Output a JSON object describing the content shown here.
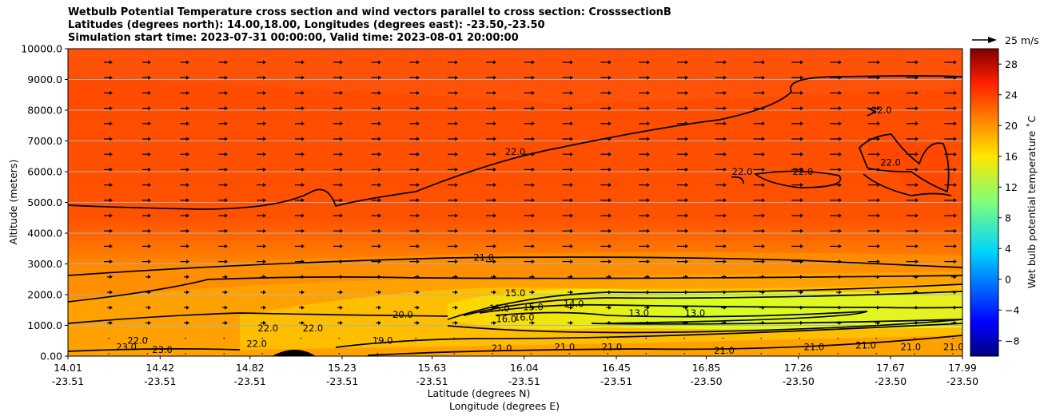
{
  "chart_data": {
    "type": "contour",
    "title_lines": [
      "Wetbulb Potential Temperature cross section and wind vectors parallel to cross section: CrosssectionB",
      "Latitudes (degrees north): 14.00,18.00, Longitudes (degrees east): -23.50,-23.50",
      "Simulation start time: 2023-07-31 00:00:00, Valid time: 2023-08-01 20:00:00"
    ],
    "ylabel": "Altitude (meters)",
    "xlabel_lat": "Latitude (degrees N)",
    "xlabel_lon": "Longitude (degrees E)",
    "y_range": [
      0,
      10000
    ],
    "y_ticks": [
      "0.00",
      "1000.0",
      "2000.0",
      "3000.0",
      "4000.0",
      "5000.0",
      "6000.0",
      "7000.0",
      "8000.0",
      "9000.0",
      "10000.0"
    ],
    "y_tick_values": [
      0,
      1000,
      2000,
      3000,
      4000,
      5000,
      6000,
      7000,
      8000,
      9000,
      10000
    ],
    "x_range": [
      14.01,
      17.99
    ],
    "x_ticks": [
      {
        "lat": "14.01",
        "lon": "-23.51",
        "value": 14.01
      },
      {
        "lat": "14.42",
        "lon": "-23.51",
        "value": 14.42
      },
      {
        "lat": "14.82",
        "lon": "-23.51",
        "value": 14.82
      },
      {
        "lat": "15.23",
        "lon": "-23.51",
        "value": 15.23
      },
      {
        "lat": "15.63",
        "lon": "-23.51",
        "value": 15.63
      },
      {
        "lat": "16.04",
        "lon": "-23.51",
        "value": 16.04
      },
      {
        "lat": "16.45",
        "lon": "-23.51",
        "value": 16.45
      },
      {
        "lat": "16.85",
        "lon": "-23.50",
        "value": 16.85
      },
      {
        "lat": "17.26",
        "lon": "-23.50",
        "value": 17.26
      },
      {
        "lat": "17.67",
        "lon": "-23.50",
        "value": 17.67
      },
      {
        "lat": "17.99",
        "lon": "-23.50",
        "value": 17.99
      }
    ],
    "colorbar_label": "Wet bulb potential temperature $^\\circ$C",
    "colorbar_label_display": "Wet bulb potential temperature ˚C",
    "colorbar_range": [
      -10,
      30
    ],
    "colorbar_ticks": [
      "28",
      "24",
      "20",
      "16",
      "12",
      "8",
      "4",
      "0",
      "−4",
      "−8"
    ],
    "colorbar_tick_values": [
      28,
      24,
      20,
      16,
      12,
      8,
      4,
      0,
      -4,
      -8
    ],
    "colormap": "jet",
    "quiver_key": "25 m/s",
    "contour_labels": [
      {
        "text": "22.0",
        "x": 16.0,
        "y": 6550
      },
      {
        "text": "21.0",
        "x": 15.86,
        "y": 3100
      },
      {
        "text": "20.0",
        "x": 15.5,
        "y": 1250
      },
      {
        "text": "15.0",
        "x": 16.0,
        "y": 1950
      },
      {
        "text": "15.0",
        "x": 15.93,
        "y": 1450
      },
      {
        "text": "15.0",
        "x": 16.08,
        "y": 1500
      },
      {
        "text": "16.0",
        "x": 16.04,
        "y": 1150
      },
      {
        "text": "16.0",
        "x": 15.96,
        "y": 1100
      },
      {
        "text": "14.0",
        "x": 16.26,
        "y": 1600
      },
      {
        "text": "13.0",
        "x": 16.55,
        "y": 1300
      },
      {
        "text": "13.0",
        "x": 16.8,
        "y": 1300
      },
      {
        "text": "22.0",
        "x": 14.9,
        "y": 800
      },
      {
        "text": "22.0",
        "x": 15.1,
        "y": 800
      },
      {
        "text": "22.0",
        "x": 14.32,
        "y": 400
      },
      {
        "text": "23.0",
        "x": 14.27,
        "y": 200
      },
      {
        "text": "23.0",
        "x": 14.43,
        "y": 100
      },
      {
        "text": "22.0",
        "x": 14.85,
        "y": 300
      },
      {
        "text": "19.0",
        "x": 15.41,
        "y": 400
      },
      {
        "text": "21.0",
        "x": 15.94,
        "y": 150
      },
      {
        "text": "21.0",
        "x": 16.22,
        "y": 200
      },
      {
        "text": "21.0",
        "x": 16.43,
        "y": 200
      },
      {
        "text": "21.0",
        "x": 16.93,
        "y": 80
      },
      {
        "text": "21.0",
        "x": 17.33,
        "y": 200
      },
      {
        "text": "21.0",
        "x": 17.56,
        "y": 250
      },
      {
        "text": "21.0",
        "x": 17.76,
        "y": 200
      },
      {
        "text": "21.0",
        "x": 17.95,
        "y": 200
      },
      {
        "text": "22.0",
        "x": 17.63,
        "y": 7900
      },
      {
        "text": "22.0",
        "x": 17.01,
        "y": 5900
      },
      {
        "text": "22.0",
        "x": 17.28,
        "y": 5900
      },
      {
        "text": "22.0",
        "x": 17.67,
        "y": 6200
      }
    ]
  }
}
